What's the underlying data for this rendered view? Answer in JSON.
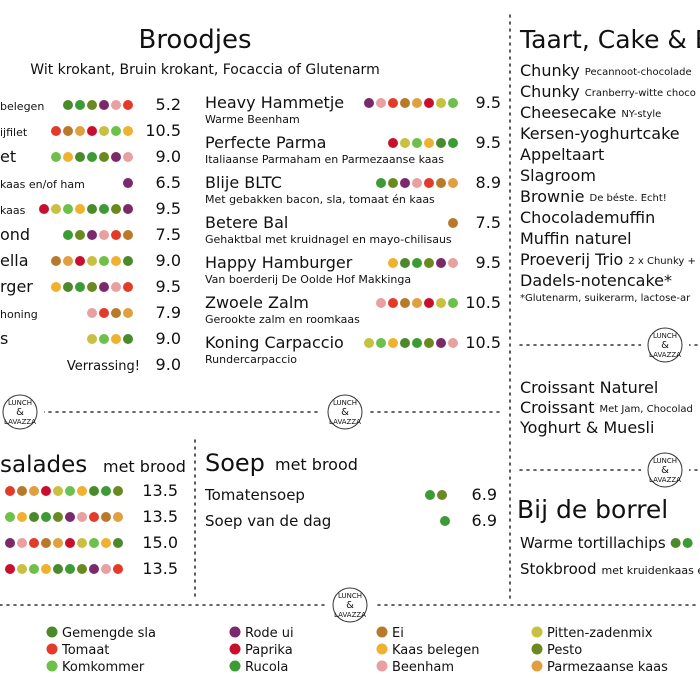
{
  "broodjes": {
    "title": "Broodjes",
    "subtitle": "Wit krokant, Bruin krokant, Focaccia of Glutenarm",
    "left_items": [
      {
        "name": "belegen",
        "price": "5.2"
      },
      {
        "name": "ijfilet",
        "price": "10.5"
      },
      {
        "name": "et",
        "price": "9.0"
      },
      {
        "name": "kaas en/of ham",
        "price": "6.5"
      },
      {
        "name": "kaas",
        "price": "9.5"
      },
      {
        "name": "ond",
        "price": "7.5"
      },
      {
        "name": "ella",
        "price": "9.0"
      },
      {
        "name": "rger",
        "price": "9.5"
      },
      {
        "name": "honing",
        "price": "7.9"
      },
      {
        "name": "s",
        "price": "9.0"
      },
      {
        "name": "Verrassing!",
        "price": "9.0"
      }
    ],
    "items": [
      {
        "name": "Heavy Hammetje",
        "description": "Warme Beenham",
        "price": "9.5"
      },
      {
        "name": "Perfecte Parma",
        "description": "Italiaanse Parmaham en Parmezaanse kaas",
        "price": "9.5"
      },
      {
        "name": "Blije BLTC",
        "description": "Met gebakken bacon, sla, tomaat én kaas",
        "price": "8.9"
      },
      {
        "name": "Betere Bal",
        "description": "Gehaktbal met kruidnagel en mayo-chilisaus",
        "price": "7.5"
      },
      {
        "name": "Happy Hamburger",
        "description": "Van boerderij De Oolde Hof Makkinga",
        "price": "9.5"
      },
      {
        "name": "Zwoele Zalm",
        "description": "Gerookte zalm en roomkaas",
        "price": "10.5"
      },
      {
        "name": "Koning Carpaccio",
        "description": "Rundercarpaccio",
        "price": "10.5"
      }
    ]
  },
  "salades": {
    "title": "salades",
    "subtitle": "met brood",
    "prices": [
      "13.5",
      "13.5",
      "15.0",
      "13.5"
    ]
  },
  "soep": {
    "title": "Soep",
    "subtitle": "met brood",
    "items": [
      {
        "name": "Tomatensoep",
        "price": "6.9"
      },
      {
        "name": "Soep van de dag",
        "price": "6.9"
      }
    ]
  },
  "taart": {
    "title": "Taart, Cake & B",
    "items": [
      {
        "name": "Chunky",
        "description": "Pecannoot-chocolade"
      },
      {
        "name": "Chunky",
        "description": "Cranberry-witte choco"
      },
      {
        "name": "Cheesecake",
        "description": "NY-style"
      },
      {
        "name": "Kersen-yoghurtcake"
      },
      {
        "name": "Appeltaart"
      },
      {
        "name": "Slagroom"
      },
      {
        "name": "Brownie",
        "description": "De béste. Echt!"
      },
      {
        "name": "Chocolademuffin"
      },
      {
        "name": "Muffin naturel"
      },
      {
        "name": "Proeverij Trio",
        "description": "2 x Chunky + B"
      },
      {
        "name": "Dadels-notencake*"
      }
    ],
    "note": "*Glutenarm, suikerarm, lactose-ar"
  },
  "ontbijt": {
    "items": [
      {
        "name": "Croissant Naturel"
      },
      {
        "name": "Croissant",
        "description": "Met Jam, Chocolad"
      },
      {
        "name": "Yoghurt & Muesli"
      }
    ]
  },
  "borrel": {
    "title": "Bij de borrel",
    "items": [
      {
        "name": "Warme tortillachips"
      },
      {
        "name": "Stokbrood",
        "description": "met kruidenkaas e"
      }
    ]
  },
  "legend": [
    "Gemengde sla",
    "Tomaat",
    "Komkommer",
    "Rode ui",
    "Paprika",
    "Rucola",
    "Ei",
    "Kaas belegen",
    "Beenham",
    "Pitten-zadenmix",
    "Pesto",
    "Parmezaanse kaas"
  ],
  "logo": {
    "top": "LUNCH",
    "middle": "&",
    "bottom": "LAVAZZA"
  }
}
